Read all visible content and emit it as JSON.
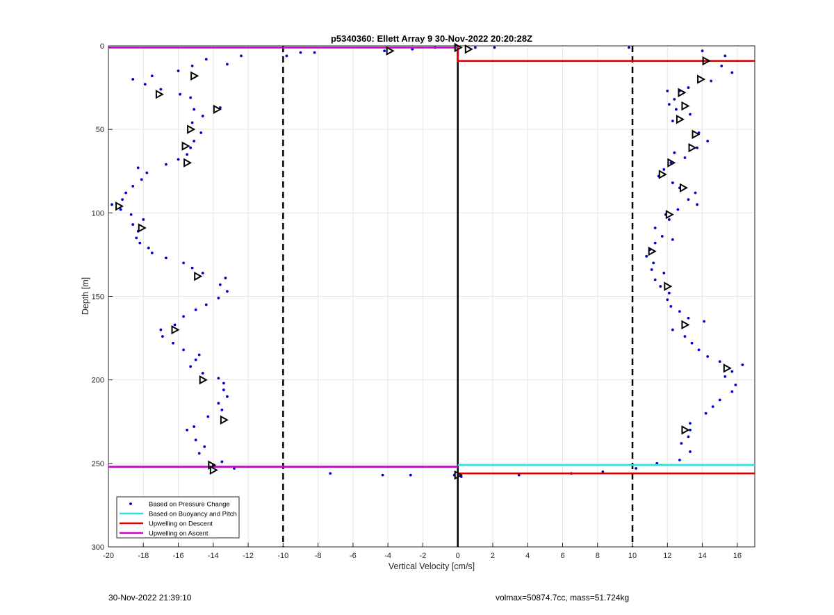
{
  "chart_data": {
    "type": "scatter",
    "title": "p5340360: Ellett Array 9 30-Nov-2022 20:20:28Z",
    "xlabel": "Vertical Velocity [cm/s]",
    "ylabel": "Depth [m]",
    "xlim": [
      -20,
      17
    ],
    "ylim": [
      0,
      300
    ],
    "y_reversed": true,
    "grid": true,
    "legend_position": "bottom-left",
    "x_ticks": [
      "-20",
      "-18",
      "-16",
      "-14",
      "-12",
      "-10",
      "-8",
      "-6",
      "-4",
      "-2",
      "0",
      "2",
      "4",
      "6",
      "8",
      "10",
      "12",
      "14",
      "16"
    ],
    "y_ticks": [
      "0",
      "50",
      "100",
      "150",
      "200",
      "250",
      "300"
    ],
    "legend": [
      {
        "label": "Based on Pressure Change",
        "color": "#0000cc",
        "style": "dot"
      },
      {
        "label": "Based on Buoyancy and Pitch",
        "color": "#33dddd",
        "style": "line"
      },
      {
        "label": "Upwelling on Descent",
        "color": "#cc0000",
        "style": "line"
      },
      {
        "label": "Upwelling on Ascent",
        "color": "#cc00cc",
        "style": "line"
      }
    ],
    "vertical_lines": [
      {
        "x": -10,
        "style": "dashed",
        "color": "#000000"
      },
      {
        "x": 10,
        "style": "dashed",
        "color": "#000000"
      },
      {
        "x": 0,
        "style": "solid",
        "color": "#000000"
      }
    ],
    "series": [
      {
        "name": "Based on Pressure Change",
        "color": "#0000cc",
        "descent_points": [
          [
            14.0,
            3
          ],
          [
            15.3,
            6
          ],
          [
            14.3,
            9
          ],
          [
            15.1,
            12
          ],
          [
            15.7,
            16
          ],
          [
            14.5,
            21
          ],
          [
            13.2,
            25
          ],
          [
            12.7,
            27
          ],
          [
            12.0,
            27
          ],
          [
            12.4,
            32
          ],
          [
            12.1,
            35
          ],
          [
            12.5,
            38
          ],
          [
            13.3,
            41
          ],
          [
            12.3,
            45
          ],
          [
            13.8,
            52
          ],
          [
            14.3,
            57
          ],
          [
            13.7,
            61
          ],
          [
            12.4,
            64
          ],
          [
            13.0,
            67
          ],
          [
            12.2,
            70
          ],
          [
            11.8,
            74
          ],
          [
            11.5,
            78
          ],
          [
            12.3,
            82
          ],
          [
            12.7,
            85
          ],
          [
            13.6,
            88
          ],
          [
            13.2,
            92
          ],
          [
            13.7,
            95
          ],
          [
            12.6,
            98
          ],
          [
            11.9,
            101
          ],
          [
            12.1,
            104
          ],
          [
            11.3,
            109
          ],
          [
            11.7,
            114
          ],
          [
            12.3,
            116
          ],
          [
            11.3,
            118
          ],
          [
            11.0,
            122
          ],
          [
            10.8,
            126
          ],
          [
            11.2,
            130
          ],
          [
            11.1,
            134
          ],
          [
            11.8,
            136
          ],
          [
            11.3,
            140
          ],
          [
            11.6,
            144
          ],
          [
            12.1,
            148
          ],
          [
            12.0,
            152
          ],
          [
            12.2,
            156
          ],
          [
            12.7,
            159
          ],
          [
            13.2,
            163
          ],
          [
            14.1,
            165
          ],
          [
            12.3,
            170
          ],
          [
            13.0,
            174
          ],
          [
            13.4,
            178
          ],
          [
            13.8,
            182
          ],
          [
            14.3,
            186
          ],
          [
            15.0,
            189
          ],
          [
            16.3,
            191
          ],
          [
            15.7,
            195
          ],
          [
            15.3,
            198
          ],
          [
            15.9,
            203
          ],
          [
            15.7,
            207
          ],
          [
            15.0,
            212
          ],
          [
            14.6,
            216
          ],
          [
            14.2,
            220
          ],
          [
            13.3,
            226
          ],
          [
            13.3,
            230
          ],
          [
            13.2,
            234
          ],
          [
            12.8,
            238
          ],
          [
            13.3,
            243
          ],
          [
            12.7,
            248
          ],
          [
            11.4,
            250
          ],
          [
            10.2,
            253
          ],
          [
            8.3,
            255
          ],
          [
            6.5,
            256
          ],
          [
            3.5,
            257
          ]
        ],
        "ascent_points": [
          [
            -14.0,
            251
          ],
          [
            -13.5,
            249
          ],
          [
            -12.8,
            253
          ],
          [
            -14.8,
            244
          ],
          [
            -14.5,
            240
          ],
          [
            -15.0,
            236
          ],
          [
            -15.5,
            230
          ],
          [
            -15.1,
            228
          ],
          [
            -14.3,
            222
          ],
          [
            -13.5,
            218
          ],
          [
            -13.7,
            214
          ],
          [
            -13.2,
            210
          ],
          [
            -13.4,
            206
          ],
          [
            -13.4,
            202
          ],
          [
            -13.7,
            199
          ],
          [
            -14.6,
            196
          ],
          [
            -15.3,
            192
          ],
          [
            -15.0,
            188
          ],
          [
            -14.8,
            185
          ],
          [
            -15.7,
            182
          ],
          [
            -16.3,
            178
          ],
          [
            -16.9,
            174
          ],
          [
            -17.0,
            170
          ],
          [
            -16.2,
            167
          ],
          [
            -15.7,
            162
          ],
          [
            -15.0,
            158
          ],
          [
            -14.4,
            155
          ],
          [
            -13.7,
            151
          ],
          [
            -13.2,
            147
          ],
          [
            -13.6,
            143
          ],
          [
            -13.3,
            139
          ],
          [
            -14.6,
            136
          ],
          [
            -15.2,
            133
          ],
          [
            -15.7,
            130
          ],
          [
            -16.7,
            127
          ],
          [
            -17.5,
            124
          ],
          [
            -17.7,
            121
          ],
          [
            -18.2,
            118
          ],
          [
            -18.4,
            115
          ],
          [
            -18.3,
            111
          ],
          [
            -18.6,
            107
          ],
          [
            -18.0,
            104
          ],
          [
            -18.7,
            101
          ],
          [
            -19.3,
            98
          ],
          [
            -19.8,
            95
          ],
          [
            -19.2,
            92
          ],
          [
            -19.0,
            88
          ],
          [
            -18.6,
            84
          ],
          [
            -18.1,
            80
          ],
          [
            -17.8,
            76
          ],
          [
            -18.3,
            73
          ],
          [
            -16.7,
            71
          ],
          [
            -16.0,
            68
          ],
          [
            -15.5,
            65
          ],
          [
            -15.3,
            61
          ],
          [
            -15.1,
            57
          ],
          [
            -14.7,
            52
          ],
          [
            -15.2,
            46
          ],
          [
            -14.6,
            42
          ],
          [
            -15.1,
            38
          ],
          [
            -13.6,
            37
          ],
          [
            -15.3,
            31
          ],
          [
            -15.9,
            29
          ],
          [
            -17.0,
            26
          ],
          [
            -17.9,
            23
          ],
          [
            -18.6,
            20
          ],
          [
            -17.5,
            18
          ],
          [
            -16.0,
            15
          ],
          [
            -15.2,
            12
          ],
          [
            -13.2,
            11
          ],
          [
            -14.4,
            8
          ],
          [
            -12.4,
            6
          ],
          [
            -9.8,
            6
          ],
          [
            -9.0,
            4
          ],
          [
            -8.2,
            4
          ],
          [
            -4.2,
            3
          ],
          [
            -2.6,
            2
          ],
          [
            -1.3,
            1
          ],
          [
            1.0,
            1
          ],
          [
            2.1,
            1
          ],
          [
            9.8,
            1
          ]
        ],
        "surface_misc": [
          [
            -7.3,
            256
          ],
          [
            -4.3,
            257
          ],
          [
            -2.7,
            257
          ],
          [
            -0.2,
            257
          ],
          [
            0.2,
            258
          ]
        ]
      },
      {
        "name": "Based on Buoyancy and Pitch",
        "color": "#33dddd",
        "depth_markers": [
          [
            0.6,
            2
          ],
          [
            14.2,
            9
          ],
          [
            13.9,
            20
          ],
          [
            12.8,
            28
          ],
          [
            13.0,
            36
          ],
          [
            12.7,
            44
          ],
          [
            13.6,
            53
          ],
          [
            13.4,
            61
          ],
          [
            12.2,
            70
          ],
          [
            11.7,
            77
          ],
          [
            12.9,
            85
          ],
          [
            12.1,
            101
          ],
          [
            11.1,
            123
          ],
          [
            12.0,
            144
          ],
          [
            13.0,
            167
          ],
          [
            15.4,
            193
          ],
          [
            13.0,
            230
          ],
          [
            0.0,
            257
          ],
          [
            -3.9,
            3
          ],
          [
            -15.1,
            18
          ],
          [
            -17.1,
            29
          ],
          [
            -13.8,
            38
          ],
          [
            -15.3,
            50
          ],
          [
            -15.6,
            60
          ],
          [
            -15.5,
            70
          ],
          [
            -19.4,
            96
          ],
          [
            -18.1,
            109
          ],
          [
            -14.9,
            138
          ],
          [
            -16.2,
            170
          ],
          [
            -14.6,
            200
          ],
          [
            -13.4,
            224
          ],
          [
            -14.1,
            251
          ],
          [
            -14.0,
            254
          ],
          [
            0.0,
            1
          ]
        ]
      },
      {
        "name": "Upwelling on Descent",
        "color": "#cc0000",
        "segments": [
          {
            "depth": 9,
            "x_from": 0,
            "x_to": 17
          },
          {
            "depth": 256,
            "x_from": 0,
            "x_to": 17
          }
        ]
      },
      {
        "name": "Upwelling on Ascent",
        "color": "#cc00cc",
        "segments": [
          {
            "depth": 1,
            "x_from": -20,
            "x_to": 0
          },
          {
            "depth": 252,
            "x_from": -20,
            "x_to": 0
          }
        ]
      }
    ],
    "buoyancy_lines": [
      {
        "depth": 251,
        "x_from": 0,
        "x_to": 17
      },
      {
        "depth": 252,
        "x_from": -20,
        "x_to": 0
      }
    ]
  },
  "footer": {
    "timestamp": "30-Nov-2022 21:39:10",
    "summary": "volmax=50874.7cc, mass=51.724kg"
  }
}
